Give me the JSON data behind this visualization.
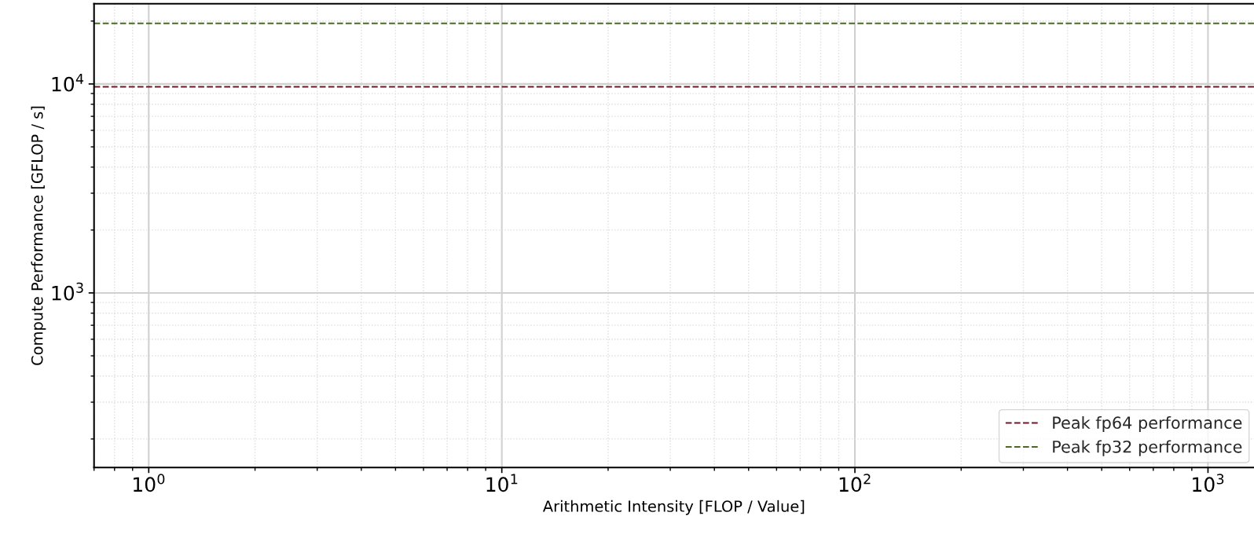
{
  "chart_data": {
    "type": "line",
    "xlabel": "Arithmetic Intensity [FLOP / Value]",
    "ylabel": "Compute Performance [GFLOP / s]",
    "log": "xy",
    "grid": true,
    "legend": "bottom right",
    "xlim": [
      0.7,
      1350
    ],
    "ylim": [
      146,
      24200
    ],
    "xticks": [
      {
        "value": 1,
        "label": "10$^{0}$"
      },
      {
        "value": 10,
        "label": "10$^{1}$"
      },
      {
        "value": 100,
        "label": "10$^{2}$"
      },
      {
        "value": 1000,
        "label": "10$^{3}$"
      }
    ],
    "yticks": [
      {
        "value": 1000,
        "label": "10$^{3}$"
      },
      {
        "value": 10000,
        "label": "10$^{4}$"
      }
    ],
    "ref_lines": [
      {
        "axis": "y",
        "value": 9700,
        "label": "Peak fp64 performance",
        "color": "#6b1a2a",
        "line_style": "dashed"
      },
      {
        "axis": "y",
        "value": 19500,
        "label": "Peak fp32 performance",
        "color": "#4a6a20",
        "line_style": "dashed"
      }
    ]
  }
}
